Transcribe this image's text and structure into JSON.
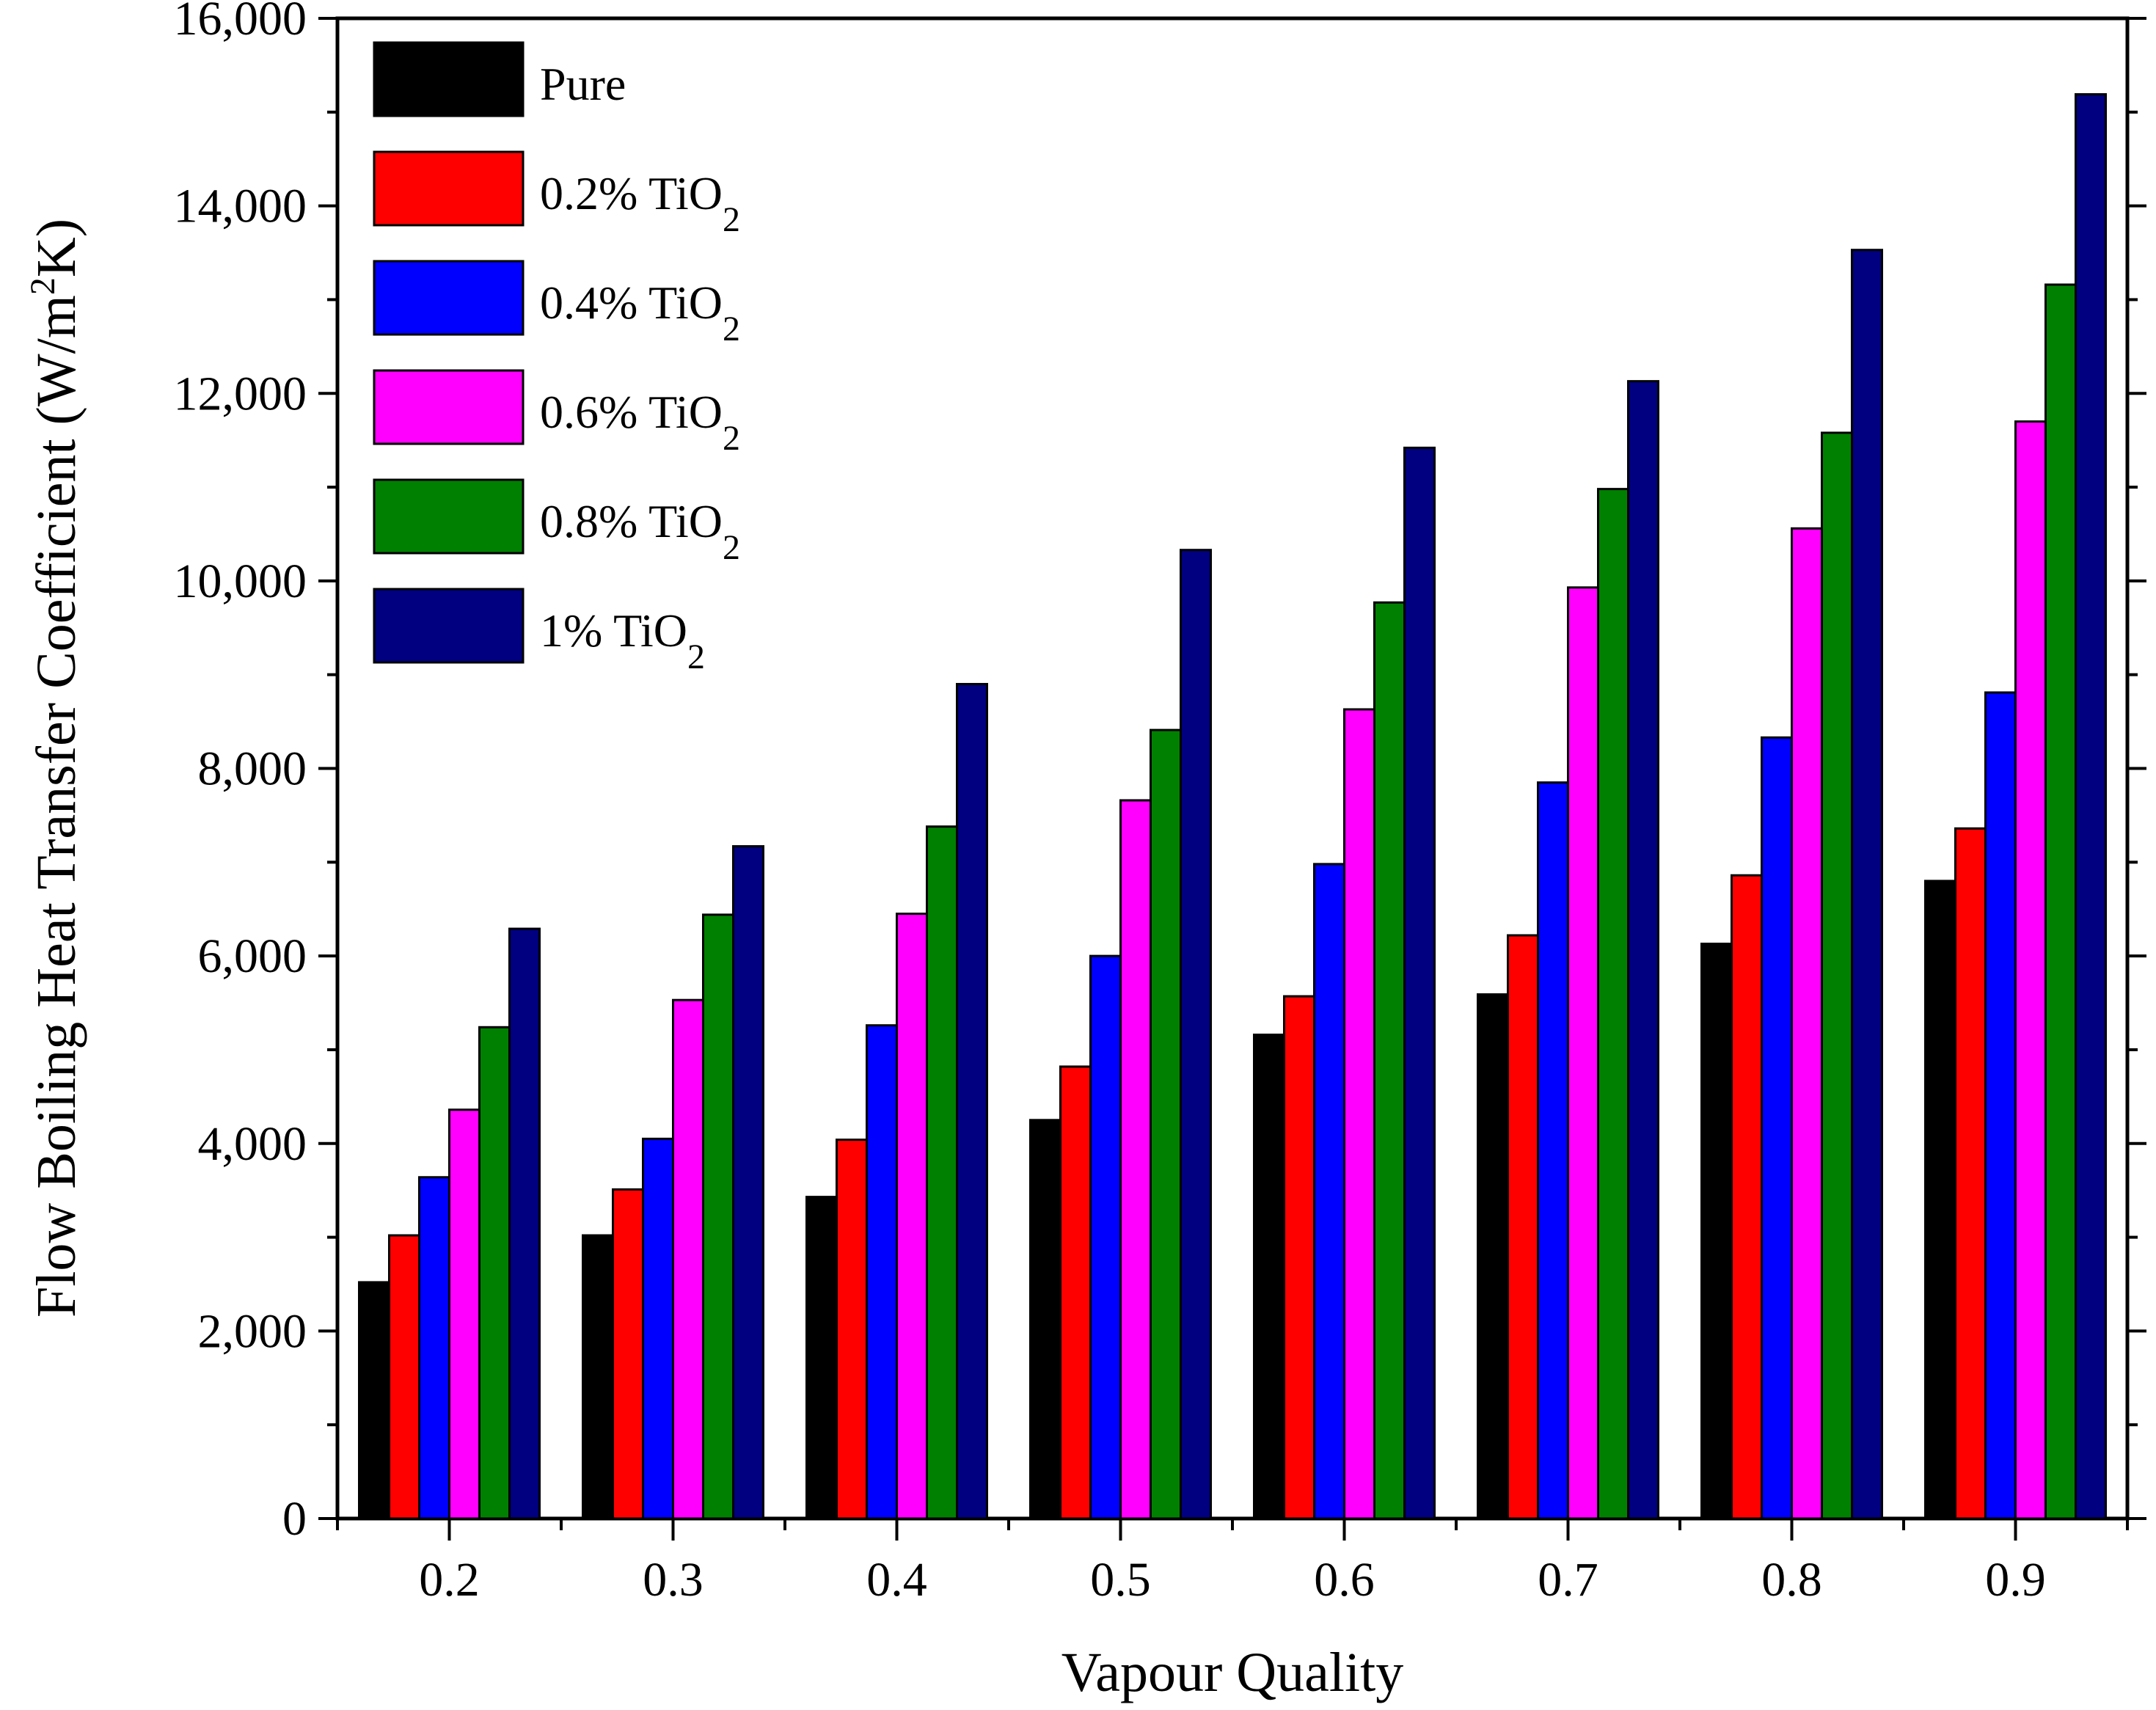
{
  "chart_data": {
    "type": "bar",
    "title": "",
    "xlabel": "Vapour Quality",
    "ylabel": "Flow Boiling Heat Transfer Coefficient (W/m²K)",
    "ylabel_parts": {
      "main": "Flow Boiling Heat Transfer Coefficient (W/m",
      "sup": "2",
      "tail": "K)"
    },
    "ylim": [
      0,
      16000
    ],
    "yticks": [
      0,
      2000,
      4000,
      6000,
      8000,
      10000,
      12000,
      14000,
      16000
    ],
    "ytick_labels": [
      "0",
      "2,000",
      "4,000",
      "6,000",
      "8,000",
      "10,000",
      "12,000",
      "14,000",
      "16,000"
    ],
    "categories": [
      "0.2",
      "0.3",
      "0.4",
      "0.5",
      "0.6",
      "0.7",
      "0.8",
      "0.9"
    ],
    "legend_position": "top-left",
    "series": [
      {
        "name": "Pure",
        "label_main": "Pure",
        "label_sub": "",
        "color": "#000000",
        "values": [
          2520,
          3020,
          3430,
          4250,
          5160,
          5590,
          6130,
          6800
        ]
      },
      {
        "name": "0.2% TiO2",
        "label_main": "0.2% TiO",
        "label_sub": "2",
        "color": "#ff0000",
        "values": [
          3020,
          3510,
          4040,
          4820,
          5570,
          6220,
          6860,
          7360
        ]
      },
      {
        "name": "0.4% TiO2",
        "label_main": "0.4% TiO",
        "label_sub": "2",
        "color": "#0000ff",
        "values": [
          3640,
          4050,
          5260,
          6000,
          6980,
          7850,
          8330,
          8810
        ]
      },
      {
        "name": "0.6% TiO2",
        "label_main": "0.6% TiO",
        "label_sub": "2",
        "color": "#ff00ff",
        "values": [
          4360,
          5530,
          6450,
          7660,
          8630,
          9930,
          10560,
          11700
        ]
      },
      {
        "name": "0.8% TiO2",
        "label_main": "0.8% TiO",
        "label_sub": "2",
        "color": "#008000",
        "values": [
          5240,
          6440,
          7380,
          8410,
          9770,
          10980,
          11580,
          13160
        ]
      },
      {
        "name": "1% TiO2",
        "label_main": "1% TiO",
        "label_sub": "2",
        "color": "#000080",
        "values": [
          6290,
          7170,
          8900,
          10330,
          11420,
          12130,
          13530,
          15190
        ]
      }
    ]
  }
}
